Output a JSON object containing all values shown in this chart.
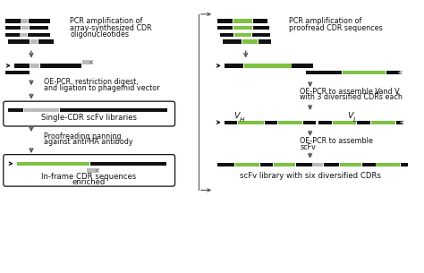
{
  "bg_color": "#ffffff",
  "black": "#111111",
  "gray": "#888888",
  "green": "#7dc242",
  "light_gray": "#bbbbbb",
  "dark_gray": "#555555",
  "left_panel": {
    "title1": "PCR amplification of",
    "title2": "array-synthesized CDR",
    "title3": "oligonucleotides",
    "label2a": "OE-PCR, restriction digest,",
    "label2b": "and ligation to phagemid vector",
    "label3": "Single-CDR scFv libraries",
    "label4a": "Proofreading panning",
    "label4b": "against anti-HA antibody",
    "label5a": "In-frame CDR sequences",
    "label5b": "enriched"
  },
  "right_panel": {
    "title1": "PCR amplification of",
    "title2": "proofread CDR sequences",
    "label2a": "OE-PCR to assemble V",
    "label2a_sub1": "H",
    "label2a_mid": " and V",
    "label2a_sub2": "L",
    "label2b": "with 3 diversified CDRs each",
    "label3a": "OE-PCR to assemble",
    "label3b": "scFv",
    "label4": "scFv library with six diversified CDRs",
    "vh_label": "V",
    "vh_sub": "H",
    "vl_label": "V",
    "vl_sub": "L"
  }
}
